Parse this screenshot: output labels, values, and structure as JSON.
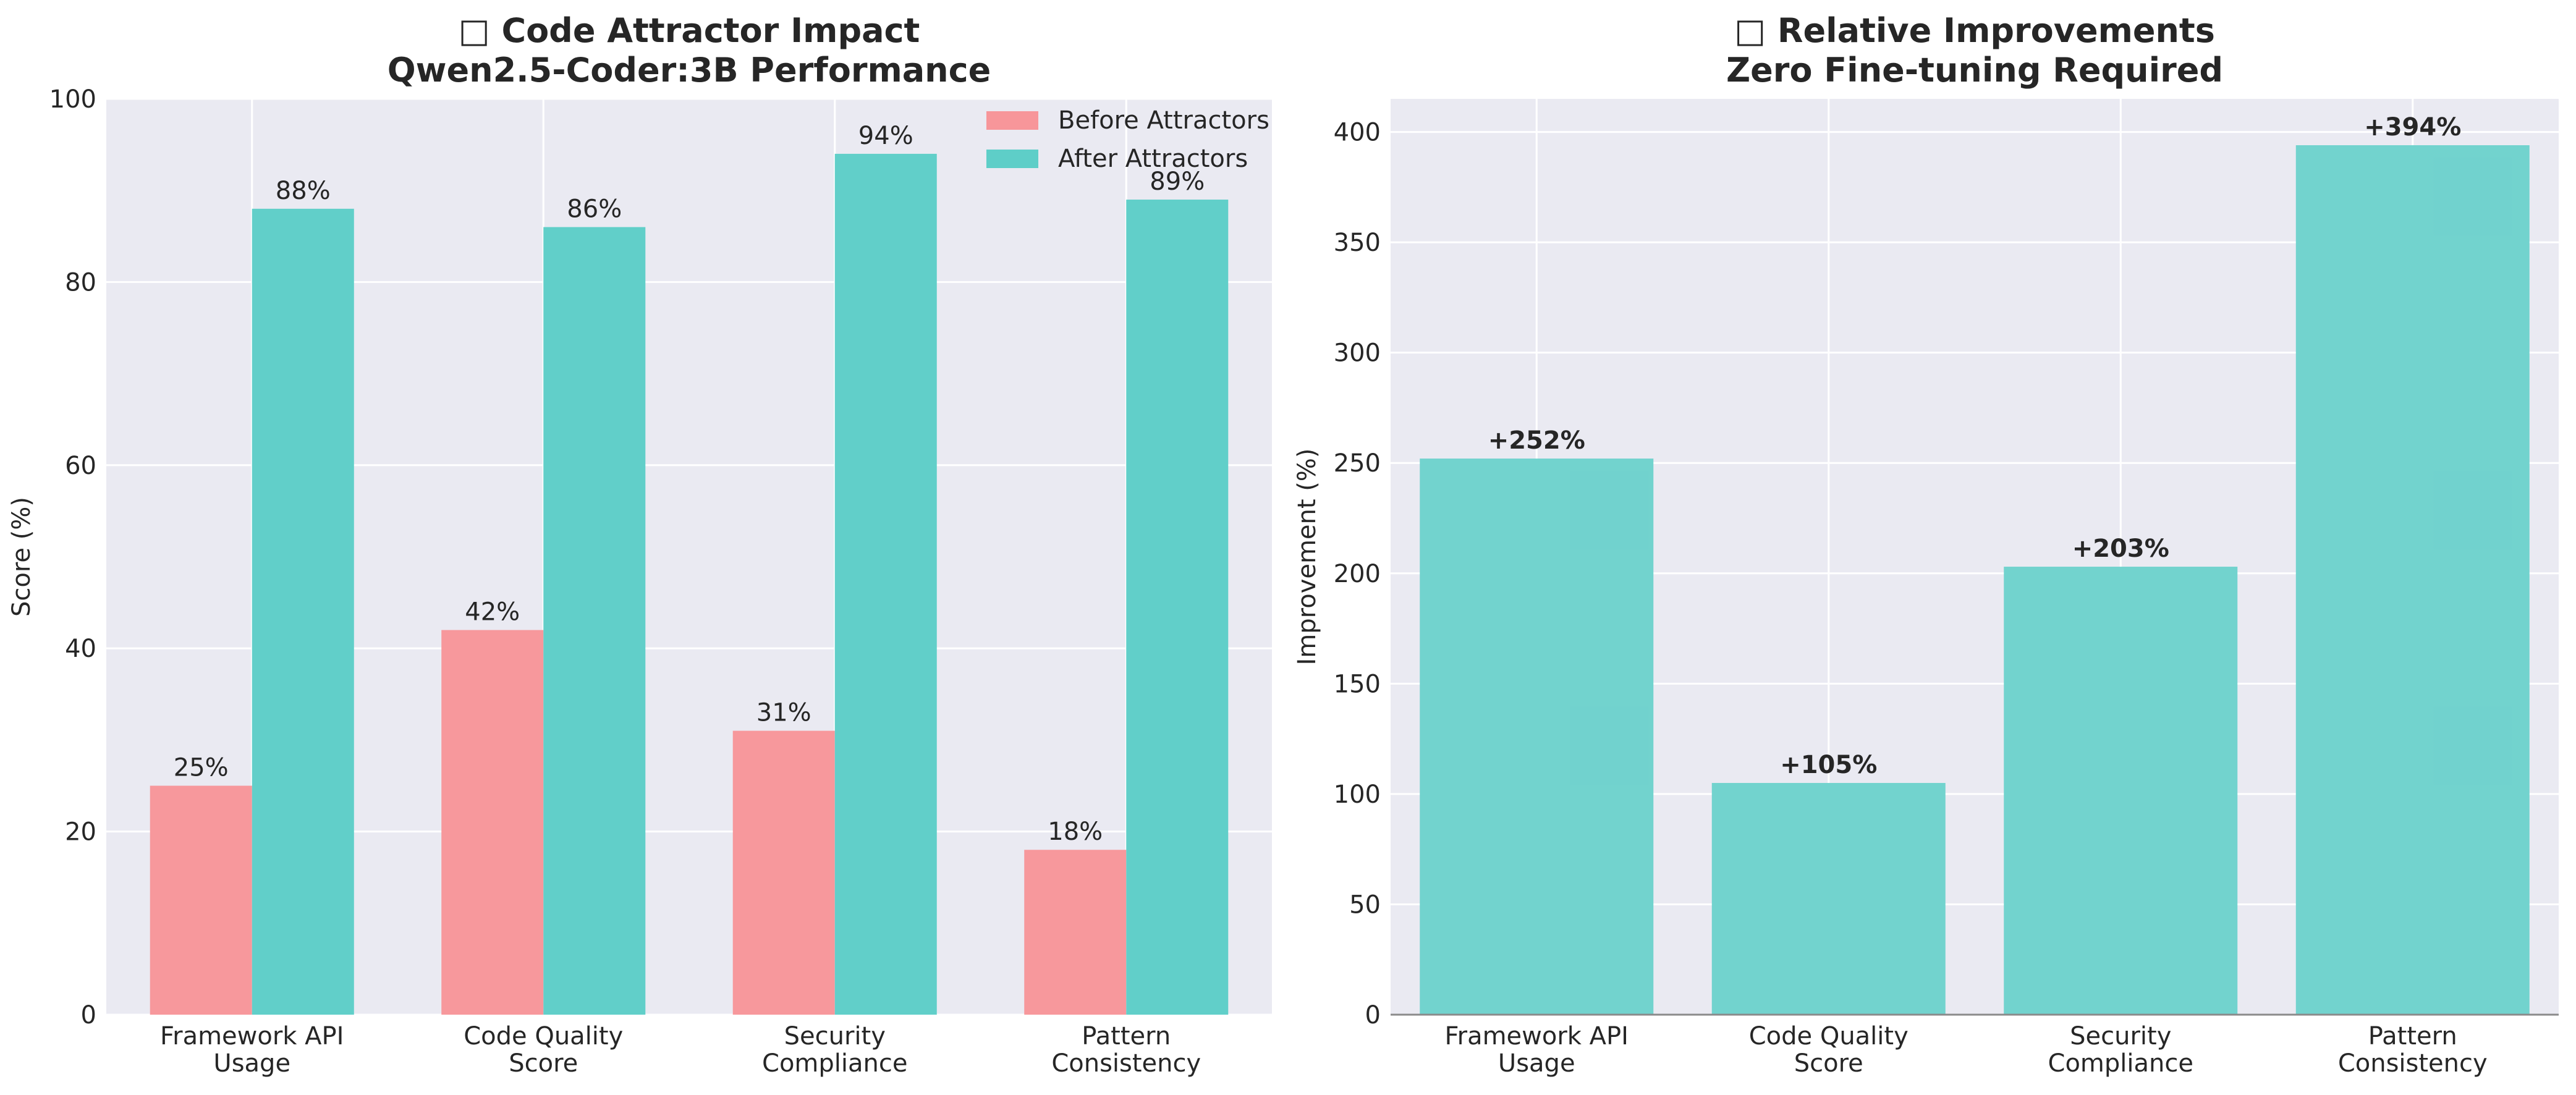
{
  "colors": {
    "before": "#f7969a",
    "after": "#5ecec8",
    "improvement": "#6fd2cd",
    "plot_bg": "#eaeaf2",
    "grid": "#ffffff"
  },
  "chart_data": [
    {
      "type": "bar",
      "title": "Code Attractor Impact",
      "title_icon": "emoji-glyph-placeholder",
      "subtitle": "Qwen2.5-Coder:3B Performance",
      "xlabel": "",
      "ylabel": "Score (%)",
      "ylim": [
        0,
        100
      ],
      "yticks": [
        "0",
        "20",
        "40",
        "60",
        "80",
        "100"
      ],
      "grid": true,
      "legend_position": "top-right",
      "categories": [
        [
          "Framework API",
          "Usage"
        ],
        [
          "Code Quality",
          "Score"
        ],
        [
          "Security",
          "Compliance"
        ],
        [
          "Pattern",
          "Consistency"
        ]
      ],
      "series": [
        {
          "name": "Before Attractors",
          "values": [
            25,
            42,
            31,
            18
          ],
          "labels": [
            "25%",
            "42%",
            "31%",
            "18%"
          ]
        },
        {
          "name": "After Attractors",
          "values": [
            88,
            86,
            94,
            89
          ],
          "labels": [
            "88%",
            "86%",
            "94%",
            "89%"
          ]
        }
      ]
    },
    {
      "type": "bar",
      "title": "Relative Improvements",
      "title_icon": "emoji-glyph-placeholder",
      "subtitle": "Zero Fine-tuning Required",
      "xlabel": "",
      "ylabel": "Improvement (%)",
      "ylim": [
        0,
        415
      ],
      "yticks": [
        "0",
        "50",
        "100",
        "150",
        "200",
        "250",
        "300",
        "350",
        "400"
      ],
      "grid": true,
      "categories": [
        [
          "Framework API",
          "Usage"
        ],
        [
          "Code Quality",
          "Score"
        ],
        [
          "Security",
          "Compliance"
        ],
        [
          "Pattern",
          "Consistency"
        ]
      ],
      "values": [
        252,
        105,
        203,
        394
      ],
      "labels": [
        "+252%",
        "+105%",
        "+203%",
        "+394%"
      ]
    }
  ]
}
